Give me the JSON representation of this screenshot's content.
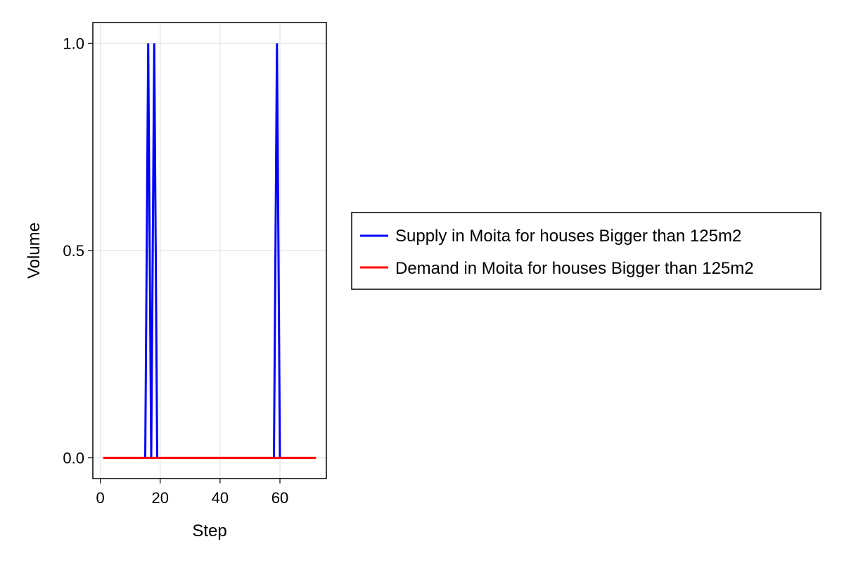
{
  "chart_data": {
    "type": "line",
    "title": "",
    "xlabel": "Step",
    "ylabel": "Volume",
    "xlim": [
      -2.5,
      75.5
    ],
    "ylim": [
      -0.05,
      1.05
    ],
    "xticks": [
      0,
      20,
      40,
      60
    ],
    "yticks": [
      0.0,
      0.5,
      1.0
    ],
    "xtick_labels": [
      "0",
      "20",
      "40",
      "60"
    ],
    "ytick_labels": [
      "0.0",
      "0.5",
      "1.0"
    ],
    "grid": true,
    "legend_position": "right",
    "series": [
      {
        "name": "Supply in Moita for houses Bigger than 125m2",
        "color": "#0000ff",
        "points": [
          [
            1,
            0
          ],
          [
            15,
            0
          ],
          [
            16,
            1
          ],
          [
            17,
            0
          ],
          [
            18,
            1
          ],
          [
            19,
            0
          ],
          [
            58,
            0
          ],
          [
            59,
            1
          ],
          [
            60,
            0
          ],
          [
            72,
            0
          ]
        ]
      },
      {
        "name": "Demand in Moita for houses Bigger than 125m2",
        "color": "#ff0000",
        "points": [
          [
            1,
            0
          ],
          [
            72,
            0
          ]
        ]
      }
    ]
  }
}
